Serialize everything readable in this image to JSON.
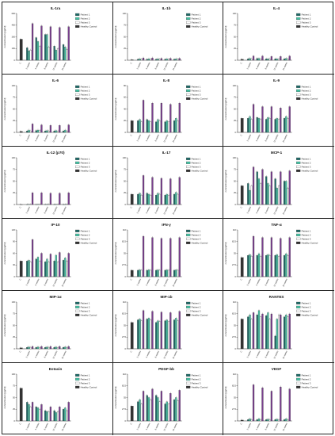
{
  "figure": {
    "legend_labels": [
      "Patient 1",
      "Patient 2",
      "Patient 3",
      "Healthy Control"
    ],
    "series_colors": [
      "#1f6b68",
      "#44c2a4",
      "#ffffff",
      "#7a3f8f"
    ],
    "healthy_color": "#333333",
    "x_categories": [
      "C",
      "2 weeks",
      "4 weeks",
      "8 weeks",
      "12 weeks",
      "24 weeks"
    ],
    "ylabel": "concentration [pg/ml]"
  },
  "chart_data": [
    {
      "type": "bar",
      "title": "IL-1ra",
      "series": [
        {
          "name": "Patient 1",
          "values": [
            null,
            160,
            290,
            330,
            180,
            200
          ]
        },
        {
          "name": "Patient 2",
          "values": [
            null,
            120,
            240,
            330,
            130,
            170
          ]
        },
        {
          "name": "Patient 3",
          "values": [
            null,
            130,
            180,
            170,
            150,
            140
          ]
        },
        {
          "name": "Healthy Control",
          "values": [
            270,
            470,
            440,
            430,
            420,
            430
          ]
        }
      ],
      "ylim": [
        0,
        600
      ]
    },
    {
      "type": "bar",
      "title": "IL-1b",
      "series": [
        {
          "name": "Patient 1",
          "values": [
            null,
            2,
            2,
            2,
            2,
            2
          ]
        },
        {
          "name": "Patient 2",
          "values": [
            null,
            3,
            3,
            3,
            3,
            3
          ]
        },
        {
          "name": "Patient 3",
          "values": [
            null,
            2,
            2,
            2,
            2,
            2
          ]
        },
        {
          "name": "Healthy Control",
          "values": [
            1,
            5,
            5,
            4,
            4,
            4
          ]
        }
      ],
      "ylim": [
        0,
        100
      ]
    },
    {
      "type": "bar",
      "title": "IL-4",
      "series": [
        {
          "name": "Patient 1",
          "values": [
            null,
            3,
            4,
            3,
            3,
            3
          ]
        },
        {
          "name": "Patient 2",
          "values": [
            null,
            4,
            4,
            3,
            3,
            4
          ]
        },
        {
          "name": "Patient 3",
          "values": [
            null,
            3,
            3,
            3,
            3,
            3
          ]
        },
        {
          "name": "Healthy Control",
          "values": [
            2,
            9,
            9,
            8,
            8,
            9
          ]
        }
      ],
      "ylim": [
        0,
        100
      ]
    },
    {
      "type": "bar",
      "title": "IL-6",
      "series": [
        {
          "name": "Patient 1",
          "values": [
            null,
            3,
            4,
            3,
            3,
            3
          ]
        },
        {
          "name": "Patient 2",
          "values": [
            null,
            5,
            5,
            4,
            4,
            5
          ]
        },
        {
          "name": "Patient 3",
          "values": [
            null,
            3,
            4,
            3,
            3,
            3
          ]
        },
        {
          "name": "Healthy Control",
          "values": [
            2,
            18,
            16,
            15,
            15,
            16
          ]
        }
      ],
      "ylim": [
        0,
        100
      ]
    },
    {
      "type": "bar",
      "title": "IL-8",
      "series": [
        {
          "name": "Patient 1",
          "values": [
            null,
            20,
            22,
            18,
            18,
            20
          ]
        },
        {
          "name": "Patient 2",
          "values": [
            null,
            22,
            20,
            22,
            20,
            24
          ]
        },
        {
          "name": "Patient 3",
          "values": [
            null,
            18,
            18,
            20,
            18,
            20
          ]
        },
        {
          "name": "Healthy Control",
          "values": [
            20,
            55,
            50,
            50,
            48,
            50
          ]
        }
      ],
      "ylim": [
        0,
        80
      ]
    },
    {
      "type": "bar",
      "title": "IL-9",
      "series": [
        {
          "name": "Patient 1",
          "values": [
            null,
            30,
            32,
            28,
            28,
            30
          ]
        },
        {
          "name": "Patient 2",
          "values": [
            null,
            34,
            30,
            32,
            30,
            34
          ]
        },
        {
          "name": "Patient 3",
          "values": [
            null,
            28,
            28,
            30,
            28,
            30
          ]
        },
        {
          "name": "Healthy Control",
          "values": [
            30,
            60,
            55,
            55,
            52,
            55
          ]
        }
      ],
      "ylim": [
        0,
        100
      ]
    },
    {
      "type": "bar",
      "title": "IL-12 (p70)",
      "series": [
        {
          "name": "Patient 1",
          "values": [
            null,
            0,
            0,
            0,
            0,
            0
          ]
        },
        {
          "name": "Patient 2",
          "values": [
            null,
            0,
            0,
            0,
            0,
            0
          ]
        },
        {
          "name": "Patient 3",
          "values": [
            null,
            0,
            0,
            0,
            0,
            0
          ]
        },
        {
          "name": "Healthy Control",
          "values": [
            0,
            25,
            25,
            24,
            24,
            25
          ]
        }
      ],
      "ylim": [
        0,
        100
      ]
    },
    {
      "type": "bar",
      "title": "IL-17",
      "series": [
        {
          "name": "Patient 1",
          "values": [
            null,
            22,
            24,
            20,
            20,
            22
          ]
        },
        {
          "name": "Patient 2",
          "values": [
            null,
            24,
            22,
            24,
            22,
            26
          ]
        },
        {
          "name": "Patient 3",
          "values": [
            null,
            20,
            20,
            22,
            20,
            22
          ]
        },
        {
          "name": "Healthy Control",
          "values": [
            22,
            62,
            58,
            56,
            55,
            58
          ]
        }
      ],
      "ylim": [
        0,
        100
      ]
    },
    {
      "type": "bar",
      "title": "MCP-1",
      "series": [
        {
          "name": "Patient 1",
          "values": [
            null,
            45,
            70,
            60,
            55,
            50
          ]
        },
        {
          "name": "Patient 2",
          "values": [
            null,
            30,
            55,
            45,
            35,
            50
          ]
        },
        {
          "name": "Patient 3",
          "values": [
            null,
            40,
            45,
            40,
            40,
            35
          ]
        },
        {
          "name": "Healthy Control",
          "values": [
            40,
            80,
            75,
            70,
            70,
            72
          ]
        }
      ],
      "ylim": [
        0,
        100
      ]
    },
    {
      "type": "bar",
      "title": "IP-10",
      "series": [
        {
          "name": "Patient 1",
          "values": [
            null,
            40,
            45,
            38,
            40,
            42
          ]
        },
        {
          "name": "Patient 2",
          "values": [
            null,
            42,
            50,
            45,
            55,
            48
          ]
        },
        {
          "name": "Patient 3",
          "values": [
            null,
            38,
            40,
            38,
            38,
            40
          ]
        },
        {
          "name": "Healthy Control",
          "values": [
            40,
            95,
            60,
            58,
            62,
            60
          ]
        }
      ],
      "ylim": [
        0,
        120
      ]
    },
    {
      "type": "bar",
      "title": "IFN-γ",
      "series": [
        {
          "name": "Patient 1",
          "values": [
            null,
            15,
            15,
            15,
            15,
            15
          ]
        },
        {
          "name": "Patient 2",
          "values": [
            null,
            16,
            16,
            16,
            16,
            16
          ]
        },
        {
          "name": "Patient 3",
          "values": [
            null,
            15,
            15,
            15,
            15,
            15
          ]
        },
        {
          "name": "Healthy Control",
          "values": [
            15,
            95,
            92,
            90,
            90,
            92
          ]
        }
      ],
      "ylim": [
        0,
        110
      ]
    },
    {
      "type": "bar",
      "title": "TNF-α",
      "series": [
        {
          "name": "Patient 1",
          "values": [
            null,
            50,
            50,
            50,
            50,
            50
          ]
        },
        {
          "name": "Patient 2",
          "values": [
            null,
            52,
            54,
            52,
            52,
            54
          ]
        },
        {
          "name": "Patient 3",
          "values": [
            null,
            48,
            48,
            50,
            48,
            50
          ]
        },
        {
          "name": "Healthy Control",
          "values": [
            45,
            95,
            92,
            92,
            90,
            92
          ]
        }
      ],
      "ylim": [
        0,
        110
      ]
    },
    {
      "type": "bar",
      "title": "MIP-1α",
      "series": [
        {
          "name": "Patient 1",
          "values": [
            null,
            3,
            3,
            3,
            3,
            3
          ]
        },
        {
          "name": "Patient 2",
          "values": [
            null,
            4,
            4,
            4,
            4,
            4
          ]
        },
        {
          "name": "Patient 3",
          "values": [
            null,
            3,
            3,
            3,
            3,
            3
          ]
        },
        {
          "name": "Healthy Control",
          "values": [
            2,
            5,
            5,
            5,
            5,
            5
          ]
        }
      ],
      "ylim": [
        0,
        100
      ]
    },
    {
      "type": "bar",
      "title": "MIP-1b",
      "series": [
        {
          "name": "Patient 1",
          "values": [
            null,
            68,
            70,
            62,
            66,
            68
          ]
        },
        {
          "name": "Patient 2",
          "values": [
            null,
            70,
            72,
            66,
            68,
            72
          ]
        },
        {
          "name": "Patient 3",
          "values": [
            null,
            66,
            68,
            64,
            64,
            66
          ]
        },
        {
          "name": "Healthy Control",
          "values": [
            62,
            90,
            88,
            86,
            85,
            88
          ]
        }
      ],
      "ylim": [
        0,
        110
      ]
    },
    {
      "type": "bar",
      "title": "RANTES",
      "series": [
        {
          "name": "Patient 1",
          "values": [
            null,
            75,
            80,
            78,
            30,
            75
          ]
        },
        {
          "name": "Patient 2",
          "values": [
            null,
            80,
            90,
            85,
            70,
            80
          ]
        },
        {
          "name": "Patient 3",
          "values": [
            null,
            70,
            75,
            70,
            80,
            75
          ]
        },
        {
          "name": "Healthy Control",
          "values": [
            70,
            85,
            82,
            82,
            80,
            82
          ]
        }
      ],
      "ylim": [
        0,
        110
      ]
    },
    {
      "type": "bar",
      "title": "Eotaxin",
      "series": [
        {
          "name": "Patient 1",
          "values": [
            null,
            40,
            30,
            22,
            22,
            25
          ]
        },
        {
          "name": "Patient 2",
          "values": [
            null,
            35,
            28,
            20,
            18,
            28
          ]
        },
        {
          "name": "Patient 3",
          "values": [
            null,
            30,
            25,
            20,
            20,
            22
          ]
        },
        {
          "name": "Healthy Control",
          "values": [
            70,
            40,
            35,
            30,
            30,
            40
          ]
        }
      ],
      "ylim": [
        0,
        100
      ]
    },
    {
      "type": "bar",
      "title": "PDGF-bb",
      "series": [
        {
          "name": "Patient 1",
          "values": [
            null,
            45,
            60,
            60,
            40,
            50
          ]
        },
        {
          "name": "Patient 2",
          "values": [
            null,
            50,
            55,
            55,
            45,
            55
          ]
        },
        {
          "name": "Patient 3",
          "values": [
            null,
            40,
            50,
            45,
            40,
            48
          ]
        },
        {
          "name": "Healthy Control",
          "values": [
            35,
            70,
            75,
            70,
            65,
            72
          ]
        }
      ],
      "ylim": [
        0,
        110
      ]
    },
    {
      "type": "bar",
      "title": "VEGF",
      "series": [
        {
          "name": "Patient 1",
          "values": [
            null,
            3,
            3,
            3,
            3,
            3
          ]
        },
        {
          "name": "Patient 2",
          "values": [
            null,
            5,
            5,
            4,
            4,
            5
          ]
        },
        {
          "name": "Patient 3",
          "values": [
            null,
            3,
            3,
            3,
            3,
            3
          ]
        },
        {
          "name": "Healthy Control",
          "values": [
            2,
            85,
            78,
            70,
            80,
            75
          ]
        }
      ],
      "ylim": [
        0,
        110
      ]
    }
  ]
}
